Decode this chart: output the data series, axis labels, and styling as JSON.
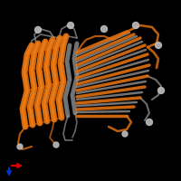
{
  "background_color": "#000000",
  "orange_color": "#e07010",
  "gray_color": "#999999",
  "gray_light": "#bbbbbb",
  "axis_ox": 10,
  "axis_oy": 183,
  "axis_x_color": "#dd0000",
  "axis_y_color": "#0033cc"
}
